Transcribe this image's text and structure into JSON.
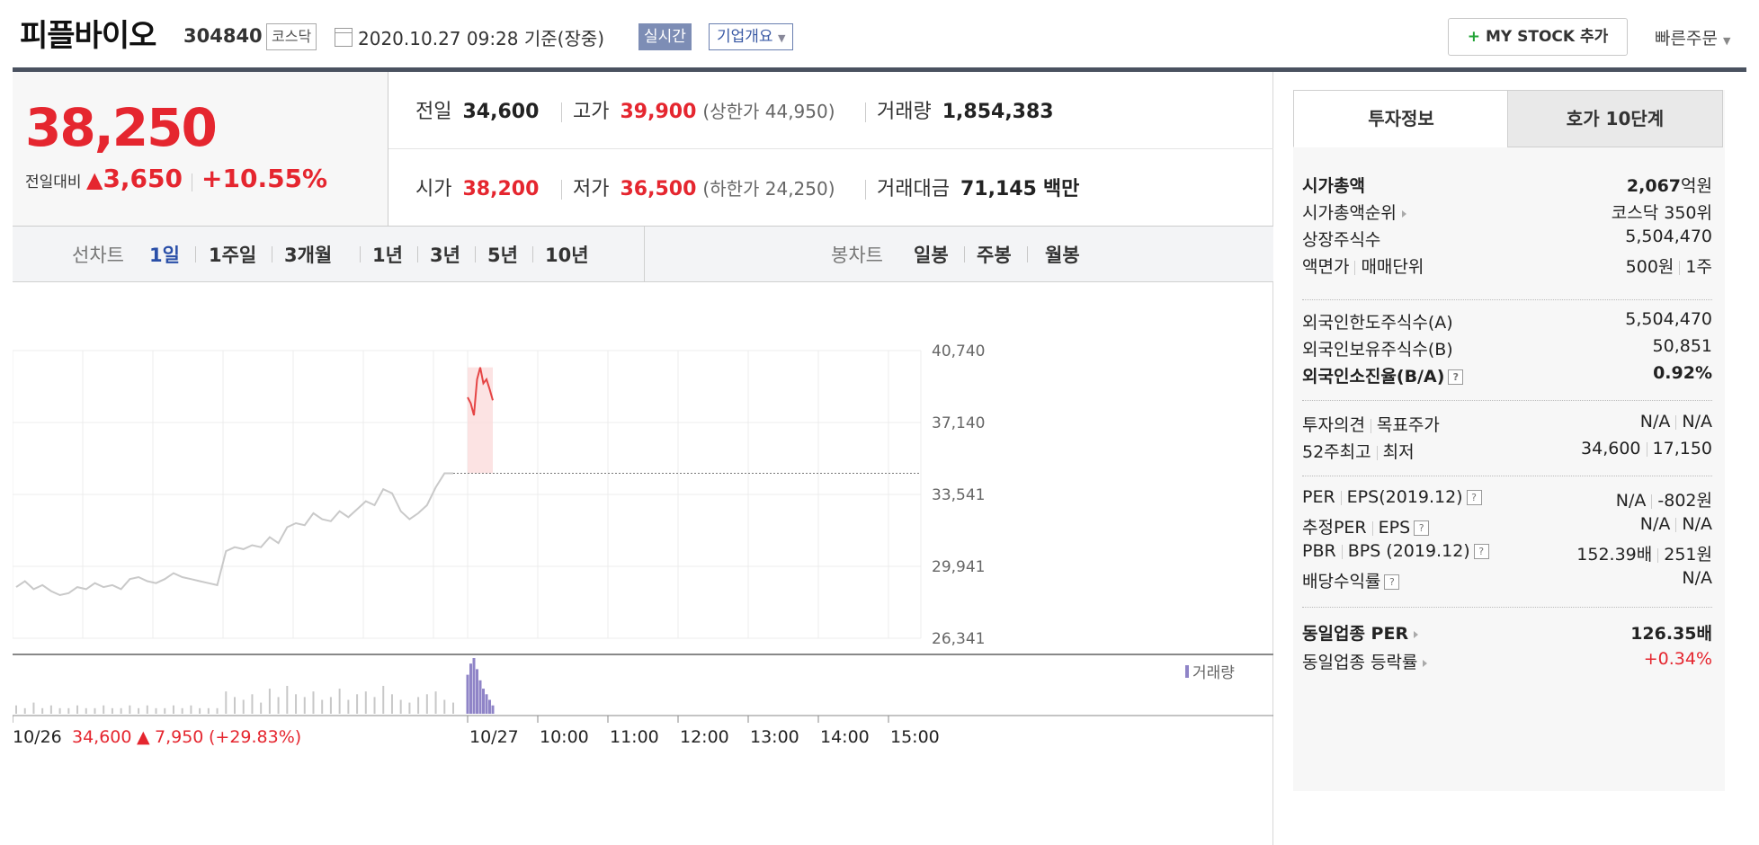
{
  "header": {
    "name": "피플바이오",
    "code": "304840",
    "market": "코스닥",
    "datetime": "2020.10.27 09:28  기준(장중)",
    "live": "실시간",
    "corp_info": "기업개요",
    "mystock_btn": "MY STOCK 추가",
    "quick_order": "빠른주문"
  },
  "price": {
    "current": "38,250",
    "change_label": "전일대비",
    "change": "3,650",
    "rate": "+10.55%"
  },
  "stats": {
    "prev_label": "전일",
    "prev": "34,600",
    "high_label": "고가",
    "high": "39,900",
    "upper": "(상한가 44,950)",
    "vol_label": "거래량",
    "vol": "1,854,383",
    "open_label": "시가",
    "open": "38,200",
    "low_label": "저가",
    "low": "36,500",
    "lower": "(하한가 24,250)",
    "amt_label": "거래대금",
    "amt": "71,145",
    "amt_unit": "백만"
  },
  "tabs": {
    "line_chart": "선차트",
    "periods": [
      "1일",
      "1주일",
      "3개월",
      "1년",
      "3년",
      "5년",
      "10년"
    ],
    "candle_chart": "봉차트",
    "candle_periods": [
      "일봉",
      "주봉",
      "월봉"
    ]
  },
  "chart_data": {
    "type": "line",
    "y_ticks": [
      "40,740",
      "37,140",
      "33,541",
      "29,941",
      "26,341"
    ],
    "x_ticks": [
      "10/27",
      "10:00",
      "11:00",
      "12:00",
      "13:00",
      "14:00",
      "15:00"
    ],
    "prev_day_label": "10/26",
    "prev_day_close": "34,600",
    "prev_day_change": "7,950",
    "prev_day_rate": "(+29.83%)",
    "volume_legend": "거래량",
    "ylim": [
      26341,
      40740
    ],
    "prev_close_line": 34600,
    "series": [
      {
        "name": "prev",
        "values": [
          28900,
          29200,
          28800,
          29000,
          28700,
          28500,
          28600,
          28900,
          28800,
          29100,
          28900,
          29000,
          28800,
          29300,
          29400,
          29200,
          29100,
          29300,
          29600,
          29400,
          29300,
          29200,
          29100,
          29000,
          30700,
          30900,
          30800,
          31000,
          30900,
          31400,
          31100,
          31900,
          32100,
          32000,
          32600,
          32300,
          32200,
          32700,
          32400,
          32800,
          33200,
          33000,
          33800,
          33600,
          32700,
          32300,
          32600,
          33000,
          33900,
          34600,
          34600
        ]
      },
      {
        "name": "today",
        "values": [
          38400,
          38100,
          37500,
          39300,
          39900,
          39100,
          39300,
          38800,
          38250
        ]
      }
    ],
    "volume": {
      "prev": [
        3,
        2,
        4,
        2,
        3,
        2,
        2,
        3,
        2,
        2,
        3,
        2,
        2,
        3,
        2,
        3,
        2,
        2,
        3,
        2,
        3,
        2,
        2,
        2,
        8,
        6,
        5,
        7,
        4,
        9,
        6,
        10,
        7,
        6,
        8,
        5,
        6,
        9,
        5,
        7,
        8,
        6,
        10,
        7,
        5,
        4,
        6,
        7,
        8,
        5,
        4
      ],
      "today": [
        14,
        18,
        20,
        16,
        12,
        9,
        7,
        5,
        3
      ]
    }
  },
  "invest": {
    "tab_active": "투자정보",
    "tab_other": "호가 10단계",
    "mcap_label": "시가총액",
    "mcap": "2,067",
    "mcap_unit": "억원",
    "mcap_rank_label": "시가총액순위",
    "mcap_rank": "코스닥 350위",
    "shares_label": "상장주식수",
    "shares": "5,504,470",
    "face_label": "액면가",
    "unit_label": "매매단위",
    "face": "500원",
    "unit": "1주",
    "foreign_limit_label": "외국인한도주식수(A)",
    "foreign_limit": "5,504,470",
    "foreign_hold_label": "외국인보유주식수(B)",
    "foreign_hold": "50,851",
    "foreign_rate_label": "외국인소진율(B/A)",
    "foreign_rate": "0.92%",
    "opinion_label": "투자의견",
    "target_label": "목표주가",
    "opinion": "N/A",
    "target": "N/A",
    "w52_high_label": "52주최고",
    "w52_low_label": "최저",
    "w52_high": "34,600",
    "w52_low": "17,150",
    "per_label": "PER",
    "eps_label": "EPS(2019.12)",
    "per": "N/A",
    "eps": "-802원",
    "est_per_label": "추정PER",
    "est_eps_label": "EPS",
    "est_per": "N/A",
    "est_eps": "N/A",
    "pbr_label": "PBR",
    "bps_label": "BPS (2019.12)",
    "pbr": "152.39배",
    "bps": "251원",
    "div_label": "배당수익률",
    "div": "N/A",
    "sector_per_label": "동일업종 PER",
    "sector_per": "126.35배",
    "sector_rate_label": "동일업종 등락률",
    "sector_rate": "+0.34%"
  }
}
